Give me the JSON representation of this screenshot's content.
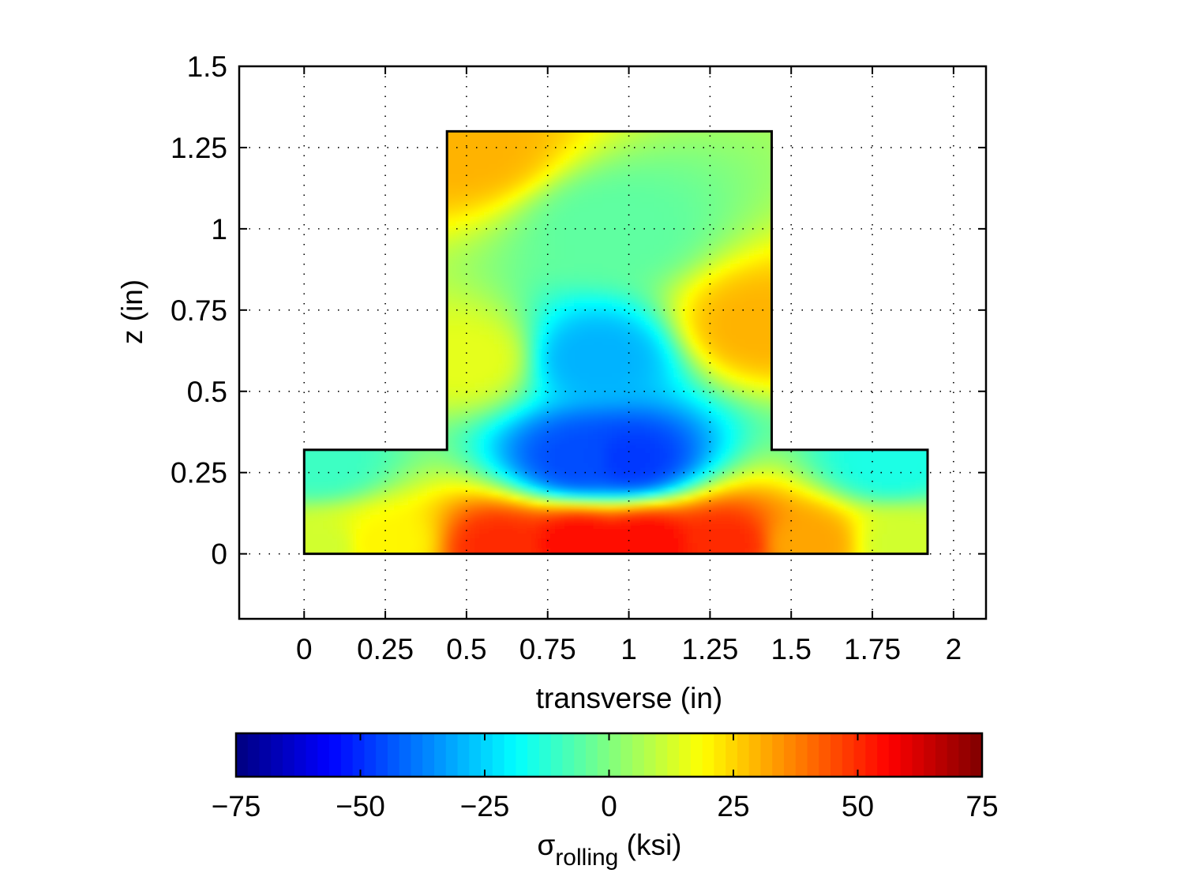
{
  "chart_data": {
    "type": "heatmap",
    "title": "",
    "xlabel": "transverse (in)",
    "ylabel": "z (in)",
    "xlim": [
      -0.2,
      2.1
    ],
    "ylim": [
      -0.2,
      1.5
    ],
    "x_ticks": [
      0,
      0.25,
      0.5,
      0.75,
      1,
      1.25,
      1.5,
      1.75,
      2
    ],
    "x_tick_labels": [
      "0",
      "0.25",
      "0.5",
      "0.75",
      "1",
      "1.25",
      "1.5",
      "1.75",
      "2"
    ],
    "y_ticks": [
      0,
      0.25,
      0.5,
      0.75,
      1,
      1.25,
      1.5
    ],
    "y_tick_labels": [
      "0",
      "0.25",
      "0.5",
      "0.75",
      "1",
      "1.25",
      "1.5"
    ],
    "grid": true,
    "grid_style": "dotted",
    "region_outline": [
      [
        0,
        0
      ],
      [
        1.92,
        0
      ],
      [
        1.92,
        0.32
      ],
      [
        1.44,
        0.32
      ],
      [
        1.44,
        1.3
      ],
      [
        0.44,
        1.3
      ],
      [
        0.44,
        0.32
      ],
      [
        0,
        0.32
      ]
    ],
    "field_samples": [
      {
        "x": 0.05,
        "z": 0.02,
        "value": 12
      },
      {
        "x": 0.25,
        "z": 0.03,
        "value": 20
      },
      {
        "x": 0.6,
        "z": 0.02,
        "value": 50
      },
      {
        "x": 0.85,
        "z": 0.03,
        "value": 55
      },
      {
        "x": 1.05,
        "z": 0.03,
        "value": 55
      },
      {
        "x": 1.3,
        "z": 0.03,
        "value": 50
      },
      {
        "x": 1.55,
        "z": 0.03,
        "value": 32
      },
      {
        "x": 1.85,
        "z": 0.03,
        "value": 12
      },
      {
        "x": 0.05,
        "z": 0.28,
        "value": -10
      },
      {
        "x": 1.8,
        "z": 0.28,
        "value": -15
      },
      {
        "x": 0.85,
        "z": 0.29,
        "value": -45
      },
      {
        "x": 1.0,
        "z": 0.29,
        "value": -48
      },
      {
        "x": 0.9,
        "z": 0.6,
        "value": -30
      },
      {
        "x": 0.95,
        "z": 1.0,
        "value": -5
      },
      {
        "x": 0.5,
        "z": 1.25,
        "value": 30
      },
      {
        "x": 1.4,
        "z": 0.7,
        "value": 30
      },
      {
        "x": 0.5,
        "z": 0.6,
        "value": 15
      }
    ],
    "colorbar": {
      "colormap": "jet",
      "range": [
        -75,
        75
      ],
      "ticks": [
        -75,
        -50,
        -25,
        0,
        25,
        50,
        75
      ],
      "tick_labels": [
        "−75",
        "−50",
        "−25",
        "0",
        "25",
        "50",
        "75"
      ],
      "label_main": "σ",
      "label_subscript": "rolling",
      "label_unit": " (ksi)"
    }
  }
}
